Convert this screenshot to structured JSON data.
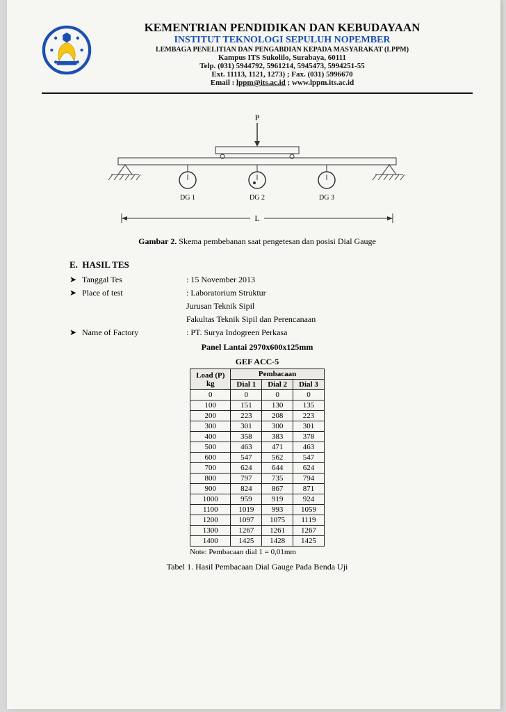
{
  "header": {
    "title1": "KEMENTRIAN PENDIDIKAN DAN KEBUDAYAAN",
    "title2": "INSTITUT TEKNOLOGI SEPULUH NOPEMBER",
    "title3": "LEMBAGA PENELITIAN DAN PENGABDIAN KEPADA MASYARAKAT (LPPM)",
    "addr": "Kampus ITS Sukolilo, Surabaya, 60111",
    "tel": "Telp. (031) 5944792, 5961214, 5945473, 5994251-55",
    "ext": "Ext. 11113, 1121, 1273) ; Fax. (031) 5996670",
    "email_lbl": "Email : ",
    "email": "lppm@its.ac.id",
    "sep": " ; ",
    "web": "www.lppm.its.ac.id"
  },
  "figure": {
    "p_label": "P",
    "dg1": "DG 1",
    "dg2": "DG 2",
    "dg3": "DG 3",
    "L": "L",
    "caption_bold": "Gambar 2.",
    "caption_rest": "  Skema pembebanan saat pengetesan dan posisi Dial Gauge",
    "colors": {
      "stroke": "#333",
      "fill_none": "none",
      "hatch": "#444"
    }
  },
  "section": {
    "letter": "E.",
    "title": "HASIL TES",
    "rows": [
      {
        "label": "Tanggal Tes",
        "value": ": 15 November 2013"
      },
      {
        "label": "Place of test",
        "value": ": Laboratorium Struktur"
      },
      {
        "label": "",
        "value": "  Jurusan Teknik Sipil"
      },
      {
        "label": "",
        "value": "  Fakultas Teknik Sipil dan Perencanaan"
      },
      {
        "label": "Name of Factory",
        "value": ": PT. Surya Indogreen Perkasa"
      }
    ]
  },
  "panel": {
    "line1": "Panel Lantai 2970x600x125mm",
    "line2": "GEF ACC-5"
  },
  "table": {
    "head_load": "Load (P)",
    "head_kg": "kg",
    "head_pemb": "Pembacaan",
    "head_d1": "Dial 1",
    "head_d2": "Dial 2",
    "head_d3": "Dial 3",
    "rows": [
      [
        "0",
        "0",
        "0",
        "0"
      ],
      [
        "100",
        "151",
        "130",
        "135"
      ],
      [
        "200",
        "223",
        "208",
        "223"
      ],
      [
        "300",
        "301",
        "300",
        "301"
      ],
      [
        "400",
        "358",
        "383",
        "378"
      ],
      [
        "500",
        "463",
        "471",
        "463"
      ],
      [
        "600",
        "547",
        "562",
        "547"
      ],
      [
        "700",
        "624",
        "644",
        "624"
      ],
      [
        "800",
        "797",
        "735",
        "794"
      ],
      [
        "900",
        "824",
        "867",
        "871"
      ],
      [
        "1000",
        "959",
        "919",
        "924"
      ],
      [
        "1100",
        "1019",
        "993",
        "1059"
      ],
      [
        "1200",
        "1097",
        "1075",
        "1119"
      ],
      [
        "1300",
        "1267",
        "1261",
        "1267"
      ],
      [
        "1400",
        "1425",
        "1428",
        "1425"
      ]
    ],
    "note": "Note: Pembacaan dial 1 = 0,01mm",
    "caption": "Tabel 1. Hasil Pembacaan Dial Gauge Pada Benda Uji"
  }
}
